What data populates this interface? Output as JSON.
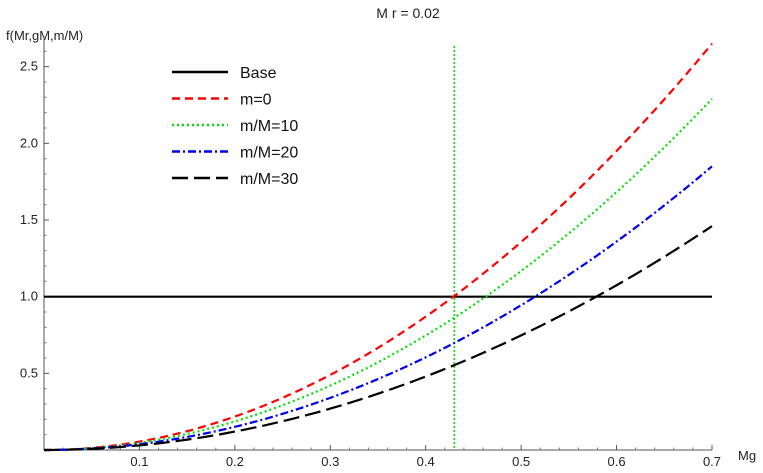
{
  "chart_data": {
    "type": "line",
    "title": "M r = 0.02",
    "xlabel": "Mg",
    "ylabel": "f(Mr,gM,m/M)",
    "xlim": [
      0,
      0.7
    ],
    "ylim": [
      0,
      2.7
    ],
    "xticks": [
      0.1,
      0.2,
      0.3,
      0.4,
      0.5,
      0.6,
      0.7
    ],
    "yticks": [
      0.5,
      1.0,
      1.5,
      2.0,
      2.5
    ],
    "xtick_labels": [
      "0.1",
      "0.2",
      "0.3",
      "0.4",
      "0.5",
      "0.6",
      "0.7"
    ],
    "ytick_labels": [
      "0.5",
      "1.0",
      "1.5",
      "2.0",
      "2.5"
    ],
    "grid": false,
    "legend_position": "top-left",
    "vertical_marker": {
      "x": 0.43,
      "color": "#00e000"
    },
    "x": [
      0,
      0.1,
      0.2,
      0.3,
      0.4,
      0.5,
      0.6,
      0.7
    ],
    "series": [
      {
        "name": "Base",
        "color": "#000000",
        "dash": "solid",
        "values": [
          1,
          1,
          1,
          1,
          1,
          1,
          1,
          1
        ]
      },
      {
        "name": "m=0",
        "color": "#ff0000",
        "dash": "dashed",
        "values": [
          0,
          0.054,
          0.22,
          0.49,
          0.87,
          1.36,
          1.95,
          2.65
        ]
      },
      {
        "name": "m/M=10",
        "color": "#00e000",
        "dash": "dotted",
        "values": [
          0,
          0.047,
          0.19,
          0.42,
          0.75,
          1.17,
          1.68,
          2.29
        ]
      },
      {
        "name": "m/M=20",
        "color": "#0000ee",
        "dash": "dashdot",
        "values": [
          0,
          0.038,
          0.15,
          0.34,
          0.61,
          0.95,
          1.36,
          1.85
        ]
      },
      {
        "name": "m/M=30",
        "color": "#000000",
        "dash": "longdash",
        "values": [
          0,
          0.03,
          0.12,
          0.27,
          0.48,
          0.75,
          1.07,
          1.46
        ]
      }
    ]
  }
}
